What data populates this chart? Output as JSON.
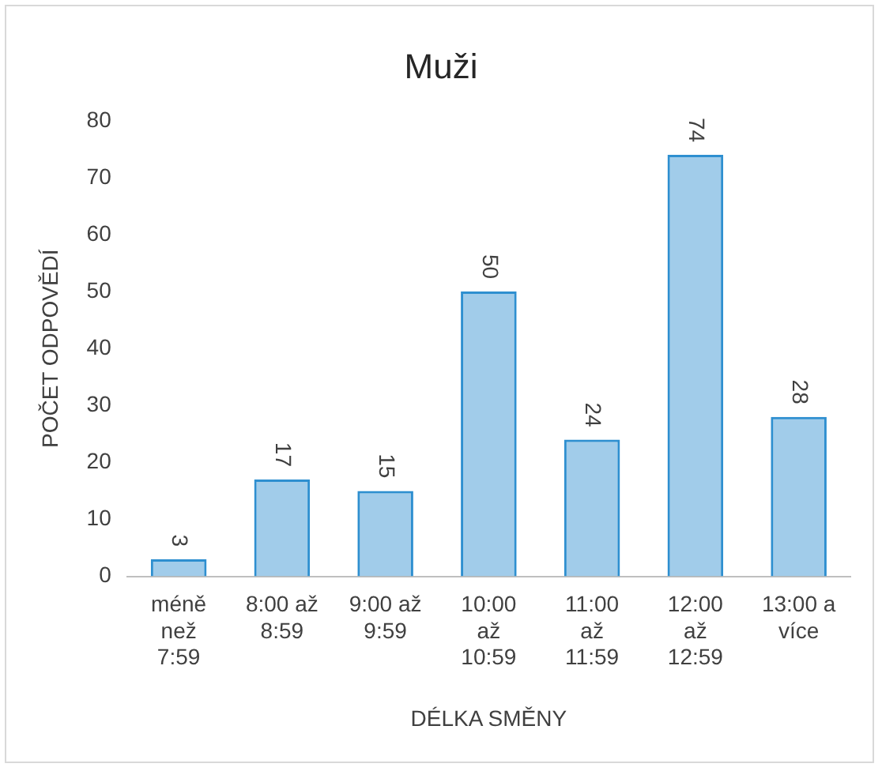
{
  "chart_data": {
    "type": "bar",
    "title": "Muži",
    "xlabel": "DÉLKA SMĚNY",
    "ylabel": "POČET ODPOVĚDÍ",
    "categories": [
      "méně než 7:59",
      "8:00 až 8:59",
      "9:00 až 9:59",
      "10:00 až 10:59",
      "11:00 až 11:59",
      "12:00 až 12:59",
      "13:00 a více"
    ],
    "values": [
      3,
      17,
      15,
      50,
      24,
      74,
      28
    ],
    "color": "#2e8fd0",
    "ylim": [
      0,
      80
    ],
    "yticks": [
      0,
      10,
      20,
      30,
      40,
      50,
      60,
      70,
      80
    ],
    "grid": false,
    "data_labels": true
  }
}
